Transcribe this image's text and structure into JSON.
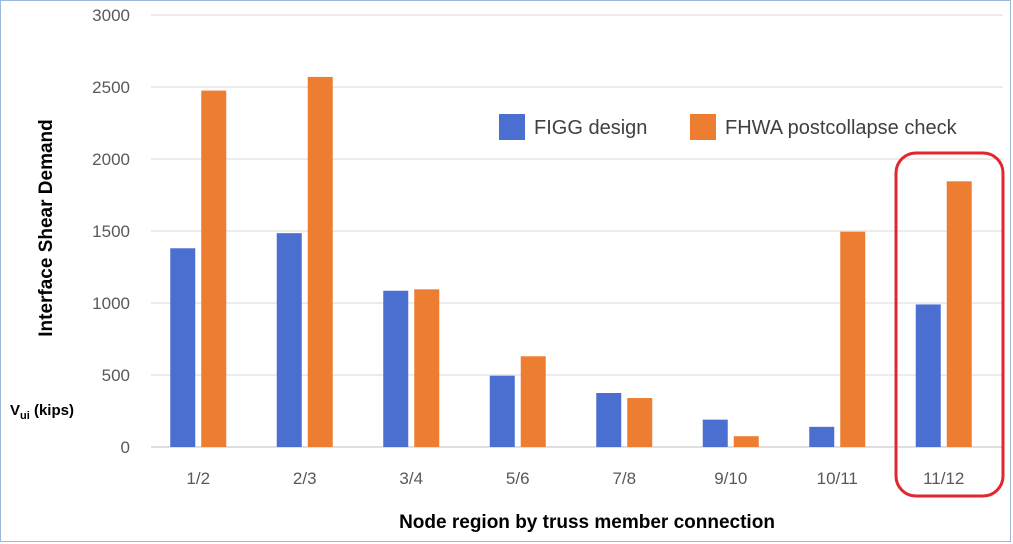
{
  "chart_data": {
    "type": "bar",
    "title": "",
    "xlabel": "Node region by truss member connection",
    "ylabel": "Interface Shear Demand",
    "unit_label": {
      "main": "V",
      "sub": "ui",
      "rest": " (kips)"
    },
    "categories": [
      "1/2",
      "2/3",
      "3/4",
      "5/6",
      "7/8",
      "9/10",
      "10/11",
      "11/12"
    ],
    "series": [
      {
        "name": "FIGG design",
        "color": "#4b6fd1",
        "values": [
          1380,
          1485,
          1085,
          495,
          375,
          190,
          140,
          990
        ]
      },
      {
        "name": "FHWA postcollapse check",
        "color": "#ed7d31",
        "values": [
          2475,
          2570,
          1095,
          630,
          340,
          75,
          1495,
          1845
        ]
      }
    ],
    "ylim": [
      0,
      3000
    ],
    "yticks": [
      0,
      500,
      1000,
      1500,
      2000,
      2500,
      3000
    ],
    "grid": true,
    "legend": "top-right",
    "highlight": {
      "category": "11/12",
      "color": "#e0262e"
    }
  }
}
